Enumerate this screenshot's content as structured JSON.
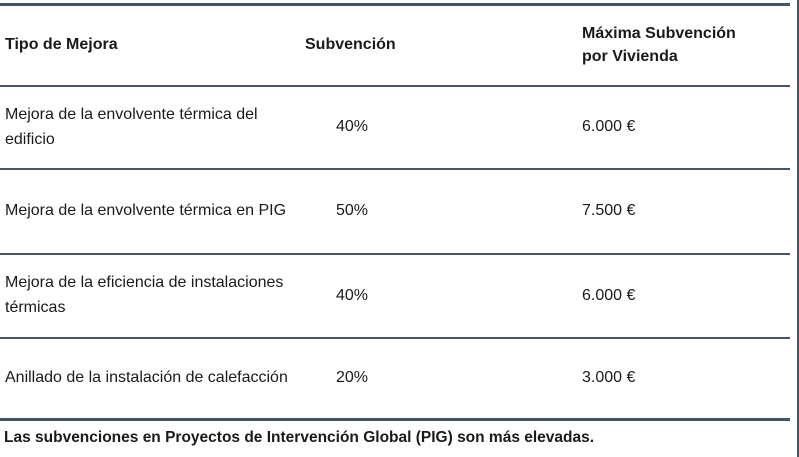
{
  "colors": {
    "line": "#44546a",
    "text": "#1a1a1a",
    "background": "#ffffff"
  },
  "table": {
    "columns": [
      "Tipo de Mejora",
      "Subvención",
      "Máxima Subvención por Vivienda"
    ],
    "rows": [
      {
        "tipo": "Mejora de la envolvente térmica del edificio",
        "subvencion": "40%",
        "maxima": "6.000 €"
      },
      {
        "tipo": "Mejora de la envolvente térmica en PIG",
        "subvencion": "50%",
        "maxima": "7.500 €"
      },
      {
        "tipo": "Mejora de la eficiencia de instalaciones térmicas",
        "subvencion": "40%",
        "maxima": "6.000 €"
      },
      {
        "tipo": "Anillado de la instalación de calefacción",
        "subvencion": "20%",
        "maxima": "3.000 €"
      }
    ],
    "footer_note": "Las subvenciones en Proyectos de Intervención Global (PIG) son más elevadas."
  }
}
